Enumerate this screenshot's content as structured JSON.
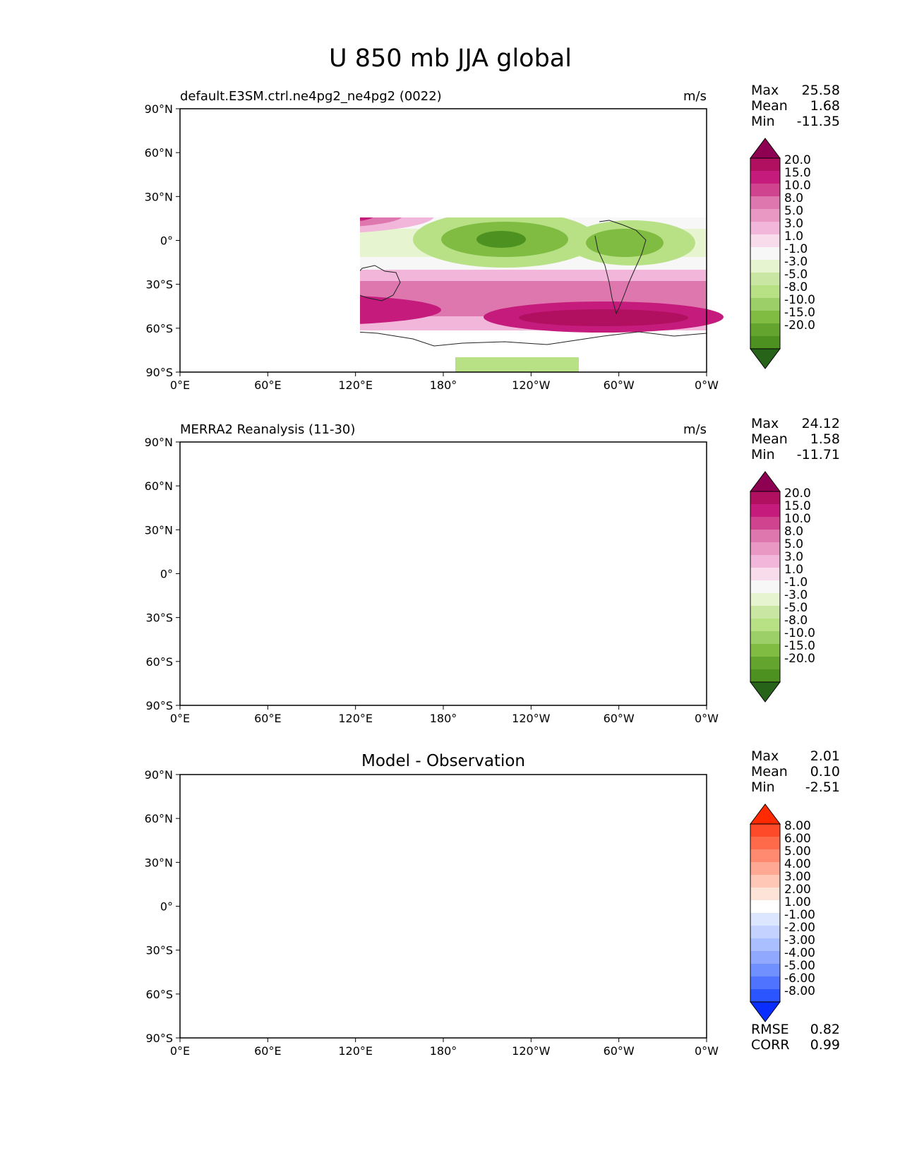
{
  "title": "U 850 mb JJA global",
  "lat_ticks": [
    "90°N",
    "60°N",
    "30°N",
    "0°",
    "30°S",
    "60°S",
    "90°S"
  ],
  "lon_ticks": [
    "0°E",
    "60°E",
    "120°E",
    "180°",
    "120°W",
    "60°W",
    "0°W"
  ],
  "panels": [
    {
      "left_title": "default.E3SM.ctrl.ne4pg2_ne4pg2 (0022)",
      "center_title": "",
      "units": "m/s",
      "stats": [
        {
          "label": "Max",
          "value": "25.58"
        },
        {
          "label": "Mean",
          "value": "1.68"
        },
        {
          "label": "Min",
          "value": "-11.35"
        }
      ]
    },
    {
      "left_title": "MERRA2 Reanalysis (11-30)",
      "center_title": "",
      "units": "m/s",
      "stats": [
        {
          "label": "Max",
          "value": "24.12"
        },
        {
          "label": "Mean",
          "value": "1.58"
        },
        {
          "label": "Min",
          "value": "-11.71"
        }
      ]
    },
    {
      "left_title": "",
      "center_title": "Model - Observation",
      "units": "",
      "stats": [
        {
          "label": "Max",
          "value": "2.01"
        },
        {
          "label": "Mean",
          "value": "0.10"
        },
        {
          "label": "Min",
          "value": "-2.51"
        }
      ],
      "metrics": [
        {
          "label": "RMSE",
          "value": "0.82"
        },
        {
          "label": "CORR",
          "value": "0.99"
        }
      ]
    }
  ],
  "colorbars": {
    "field": {
      "levels": [
        "20.0",
        "15.0",
        "10.0",
        "8.0",
        "5.0",
        "3.0",
        "1.0",
        "-1.0",
        "-3.0",
        "-5.0",
        "-8.0",
        "-10.0",
        "-15.0",
        "-20.0"
      ],
      "colors": [
        "#8e0152",
        "#b0105f",
        "#c51b7d",
        "#d0448f",
        "#de77ae",
        "#e898c2",
        "#f1b6da",
        "#f8dcec",
        "#f7f7f7",
        "#e6f5d0",
        "#c9e7a3",
        "#b8e186",
        "#9ccf67",
        "#7fbc41",
        "#63a42f",
        "#4d9221",
        "#276419"
      ]
    },
    "diff": {
      "levels": [
        "8.00",
        "6.00",
        "5.00",
        "4.00",
        "3.00",
        "2.00",
        "1.00",
        "-1.00",
        "-2.00",
        "-3.00",
        "-4.00",
        "-5.00",
        "-6.00",
        "-8.00"
      ],
      "colors": [
        "#ff2a00",
        "#ff4a2a",
        "#ff6a4a",
        "#ff8a70",
        "#ffa994",
        "#ffc7b5",
        "#fde3d8",
        "#ffffff",
        "#dde6ff",
        "#c4d2ff",
        "#aabfff",
        "#90a9ff",
        "#7190ff",
        "#4f72ff",
        "#2a55ff",
        "#0a2eff"
      ]
    }
  },
  "chart_data": {
    "type": "heatmap",
    "title": "U 850 mb JJA global",
    "variable": "U 850 mb",
    "season": "JJA",
    "units": "m/s",
    "xlim": [
      0,
      360
    ],
    "ylim": [
      -90,
      90
    ],
    "x_ticks": [
      0,
      60,
      120,
      180,
      240,
      300,
      360
    ],
    "y_ticks": [
      90,
      60,
      30,
      0,
      -30,
      -60,
      -90
    ],
    "grid": false,
    "series": [
      {
        "name": "default.E3SM.ctrl.ne4pg2_ne4pg2 (0022)",
        "max": 25.58,
        "mean": 1.68,
        "min": -11.35
      },
      {
        "name": "MERRA2 Reanalysis (11-30)",
        "max": 24.12,
        "mean": 1.58,
        "min": -11.71
      },
      {
        "name": "Model - Observation",
        "max": 2.01,
        "mean": 0.1,
        "min": -2.51,
        "rmse": 0.82,
        "corr": 0.99
      }
    ],
    "contour_levels": [
      -20,
      -15,
      -10,
      -8,
      -5,
      -3,
      -1,
      1,
      3,
      5,
      8,
      10,
      15,
      20
    ],
    "diff_contour_levels": [
      -8,
      -6,
      -5,
      -4,
      -3,
      -2,
      -1,
      1,
      2,
      3,
      4,
      5,
      6,
      8
    ]
  }
}
